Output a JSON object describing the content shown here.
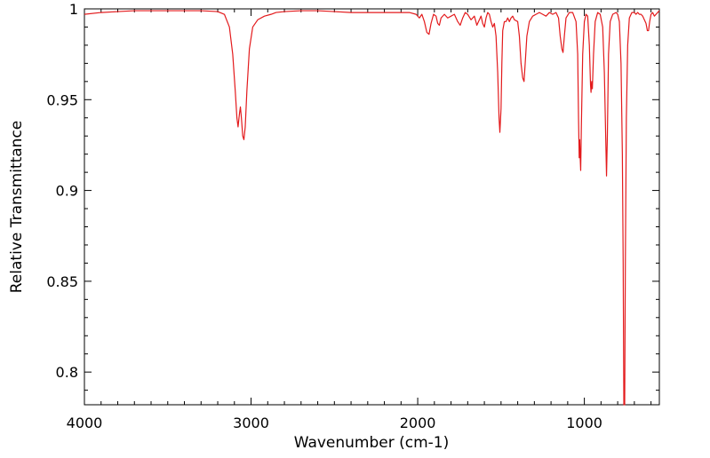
{
  "chart_data": {
    "type": "line",
    "title": "",
    "xlabel": "Wavenumber (cm-1)",
    "ylabel": "Relative Transmittance",
    "xlim": [
      4000,
      550
    ],
    "ylim": [
      0.782,
      1.0
    ],
    "x_reversed": true,
    "x_ticks": [
      4000,
      3000,
      2000,
      1000
    ],
    "x_tick_labels": [
      "4000",
      "3000",
      "2000",
      "1000"
    ],
    "y_ticks": [
      0.8,
      0.85,
      0.9,
      0.95,
      1.0
    ],
    "y_tick_labels": [
      "0.8",
      "0.85",
      "0.9",
      "0.95",
      "1"
    ],
    "grid": false,
    "legend": "none",
    "series": [
      {
        "color": "#e31a1c",
        "points": [
          [
            4000,
            0.997
          ],
          [
            3900,
            0.998
          ],
          [
            3800,
            0.9985
          ],
          [
            3700,
            0.999
          ],
          [
            3600,
            0.999
          ],
          [
            3500,
            0.999
          ],
          [
            3400,
            0.999
          ],
          [
            3300,
            0.999
          ],
          [
            3200,
            0.9985
          ],
          [
            3160,
            0.997
          ],
          [
            3130,
            0.99
          ],
          [
            3110,
            0.975
          ],
          [
            3095,
            0.955
          ],
          [
            3085,
            0.94
          ],
          [
            3078,
            0.935
          ],
          [
            3070,
            0.942
          ],
          [
            3064,
            0.946
          ],
          [
            3058,
            0.94
          ],
          [
            3050,
            0.93
          ],
          [
            3043,
            0.928
          ],
          [
            3035,
            0.935
          ],
          [
            3025,
            0.955
          ],
          [
            3010,
            0.978
          ],
          [
            2990,
            0.99
          ],
          [
            2960,
            0.994
          ],
          [
            2920,
            0.996
          ],
          [
            2880,
            0.997
          ],
          [
            2850,
            0.998
          ],
          [
            2800,
            0.9985
          ],
          [
            2700,
            0.999
          ],
          [
            2600,
            0.999
          ],
          [
            2500,
            0.9985
          ],
          [
            2400,
            0.998
          ],
          [
            2300,
            0.998
          ],
          [
            2200,
            0.998
          ],
          [
            2100,
            0.998
          ],
          [
            2050,
            0.998
          ],
          [
            2010,
            0.997
          ],
          [
            1990,
            0.995
          ],
          [
            1975,
            0.997
          ],
          [
            1960,
            0.993
          ],
          [
            1945,
            0.987
          ],
          [
            1932,
            0.986
          ],
          [
            1920,
            0.992
          ],
          [
            1905,
            0.997
          ],
          [
            1890,
            0.996
          ],
          [
            1880,
            0.992
          ],
          [
            1870,
            0.991
          ],
          [
            1860,
            0.995
          ],
          [
            1840,
            0.997
          ],
          [
            1820,
            0.995
          ],
          [
            1800,
            0.996
          ],
          [
            1780,
            0.997
          ],
          [
            1760,
            0.993
          ],
          [
            1745,
            0.991
          ],
          [
            1730,
            0.995
          ],
          [
            1715,
            0.998
          ],
          [
            1700,
            0.997
          ],
          [
            1680,
            0.994
          ],
          [
            1660,
            0.996
          ],
          [
            1645,
            0.991
          ],
          [
            1630,
            0.994
          ],
          [
            1620,
            0.996
          ],
          [
            1610,
            0.992
          ],
          [
            1600,
            0.99
          ],
          [
            1590,
            0.995
          ],
          [
            1580,
            0.998
          ],
          [
            1570,
            0.997
          ],
          [
            1560,
            0.993
          ],
          [
            1550,
            0.99
          ],
          [
            1540,
            0.992
          ],
          [
            1530,
            0.985
          ],
          [
            1520,
            0.965
          ],
          [
            1512,
            0.94
          ],
          [
            1507,
            0.932
          ],
          [
            1500,
            0.945
          ],
          [
            1495,
            0.97
          ],
          [
            1490,
            0.988
          ],
          [
            1480,
            0.993
          ],
          [
            1470,
            0.993
          ],
          [
            1460,
            0.995
          ],
          [
            1450,
            0.993
          ],
          [
            1440,
            0.995
          ],
          [
            1430,
            0.996
          ],
          [
            1420,
            0.994
          ],
          [
            1400,
            0.993
          ],
          [
            1390,
            0.985
          ],
          [
            1380,
            0.97
          ],
          [
            1370,
            0.962
          ],
          [
            1362,
            0.96
          ],
          [
            1355,
            0.97
          ],
          [
            1345,
            0.985
          ],
          [
            1330,
            0.993
          ],
          [
            1310,
            0.996
          ],
          [
            1290,
            0.997
          ],
          [
            1270,
            0.998
          ],
          [
            1250,
            0.997
          ],
          [
            1230,
            0.996
          ],
          [
            1210,
            0.998
          ],
          [
            1190,
            0.997
          ],
          [
            1170,
            0.998
          ],
          [
            1155,
            0.995
          ],
          [
            1145,
            0.985
          ],
          [
            1135,
            0.978
          ],
          [
            1128,
            0.976
          ],
          [
            1120,
            0.985
          ],
          [
            1110,
            0.995
          ],
          [
            1090,
            0.998
          ],
          [
            1070,
            0.998
          ],
          [
            1050,
            0.993
          ],
          [
            1040,
            0.975
          ],
          [
            1035,
            0.94
          ],
          [
            1031,
            0.918
          ],
          [
            1028,
            0.928
          ],
          [
            1025,
            0.918
          ],
          [
            1022,
            0.911
          ],
          [
            1018,
            0.935
          ],
          [
            1010,
            0.975
          ],
          [
            1000,
            0.993
          ],
          [
            990,
            0.997
          ],
          [
            980,
            0.996
          ],
          [
            970,
            0.98
          ],
          [
            963,
            0.958
          ],
          [
            960,
            0.954
          ],
          [
            956,
            0.96
          ],
          [
            952,
            0.956
          ],
          [
            945,
            0.975
          ],
          [
            935,
            0.993
          ],
          [
            920,
            0.998
          ],
          [
            905,
            0.997
          ],
          [
            890,
            0.99
          ],
          [
            880,
            0.965
          ],
          [
            872,
            0.93
          ],
          [
            867,
            0.908
          ],
          [
            862,
            0.93
          ],
          [
            855,
            0.975
          ],
          [
            845,
            0.993
          ],
          [
            830,
            0.997
          ],
          [
            810,
            0.998
          ],
          [
            800,
            0.997
          ],
          [
            790,
            0.993
          ],
          [
            780,
            0.97
          ],
          [
            772,
            0.92
          ],
          [
            767,
            0.86
          ],
          [
            763,
            0.782
          ],
          [
            758,
            0.782
          ],
          [
            754,
            0.86
          ],
          [
            748,
            0.94
          ],
          [
            740,
            0.98
          ],
          [
            730,
            0.995
          ],
          [
            715,
            0.998
          ],
          [
            700,
            0.998
          ],
          [
            690,
            0.997
          ],
          [
            680,
            0.998
          ],
          [
            670,
            0.997
          ],
          [
            660,
            0.997
          ],
          [
            650,
            0.996
          ],
          [
            640,
            0.994
          ],
          [
            630,
            0.992
          ],
          [
            622,
            0.988
          ],
          [
            615,
            0.988
          ],
          [
            608,
            0.993
          ],
          [
            600,
            0.997
          ],
          [
            590,
            0.998
          ],
          [
            580,
            0.996
          ],
          [
            570,
            0.997
          ],
          [
            560,
            0.998
          ],
          [
            550,
            0.999
          ]
        ]
      }
    ]
  }
}
